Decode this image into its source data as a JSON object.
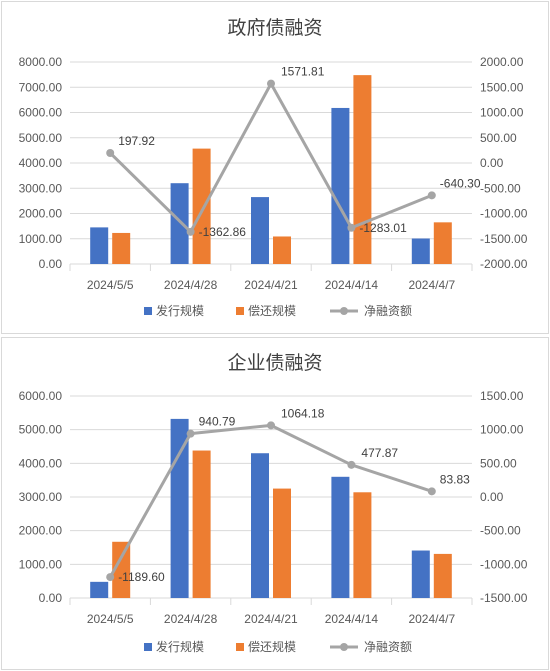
{
  "colors": {
    "issuance": "#4472C4",
    "repayment": "#ED7D31",
    "net": "#A5A5A5",
    "grid": "#D9D9D9",
    "axis_text": "#595959"
  },
  "chart_data": [
    {
      "type": "bar",
      "title": "政府债融资",
      "categories": [
        "2024/5/5",
        "2024/4/28",
        "2024/4/21",
        "2024/4/14",
        "2024/4/7"
      ],
      "series": [
        {
          "name": "发行规模",
          "type": "bar",
          "axis": "left",
          "values": [
            1450,
            3200,
            2650,
            6180,
            1010
          ]
        },
        {
          "name": "偿还规模",
          "type": "bar",
          "axis": "left",
          "values": [
            1230,
            4570,
            1090,
            7480,
            1650
          ]
        },
        {
          "name": "净融资额",
          "type": "line",
          "axis": "right",
          "values": [
            197.92,
            -1362.86,
            1571.81,
            -1283.01,
            -640.3
          ],
          "labels": [
            "197.92",
            "-1362.86",
            "1571.81",
            "-1283.01",
            "-640.30"
          ]
        }
      ],
      "left_axis": {
        "min": 0,
        "max": 8000,
        "step": 1000,
        "ticks": [
          "0.00",
          "1000.00",
          "2000.00",
          "3000.00",
          "4000.00",
          "5000.00",
          "6000.00",
          "7000.00",
          "8000.00"
        ]
      },
      "right_axis": {
        "min": -2000,
        "max": 2000,
        "step": 500,
        "ticks": [
          "-2000.00",
          "-1500.00",
          "-1000.00",
          "-500.00",
          "0.00",
          "500.00",
          "1000.00",
          "1500.00",
          "2000.00"
        ]
      },
      "grid": true,
      "legend": "bottom"
    },
    {
      "type": "bar",
      "title": "企业债融资",
      "categories": [
        "2024/5/5",
        "2024/4/28",
        "2024/4/21",
        "2024/4/14",
        "2024/4/7"
      ],
      "series": [
        {
          "name": "发行规模",
          "type": "bar",
          "axis": "left",
          "values": [
            480,
            5320,
            4300,
            3600,
            1410
          ]
        },
        {
          "name": "偿还规模",
          "type": "bar",
          "axis": "left",
          "values": [
            1670,
            4380,
            3250,
            3140,
            1310
          ]
        },
        {
          "name": "净融资额",
          "type": "line",
          "axis": "right",
          "values": [
            -1189.6,
            940.79,
            1064.18,
            477.87,
            83.83
          ],
          "labels": [
            "-1189.60",
            "940.79",
            "1064.18",
            "477.87",
            "83.83"
          ]
        }
      ],
      "left_axis": {
        "min": 0,
        "max": 6000,
        "step": 1000,
        "ticks": [
          "0.00",
          "1000.00",
          "2000.00",
          "3000.00",
          "4000.00",
          "5000.00",
          "6000.00"
        ]
      },
      "right_axis": {
        "min": -1500,
        "max": 1500,
        "step": 500,
        "ticks": [
          "-1500.00",
          "-1000.00",
          "-500.00",
          "0.00",
          "500.00",
          "1000.00",
          "1500.00"
        ]
      },
      "grid": true,
      "legend": "bottom"
    }
  ]
}
